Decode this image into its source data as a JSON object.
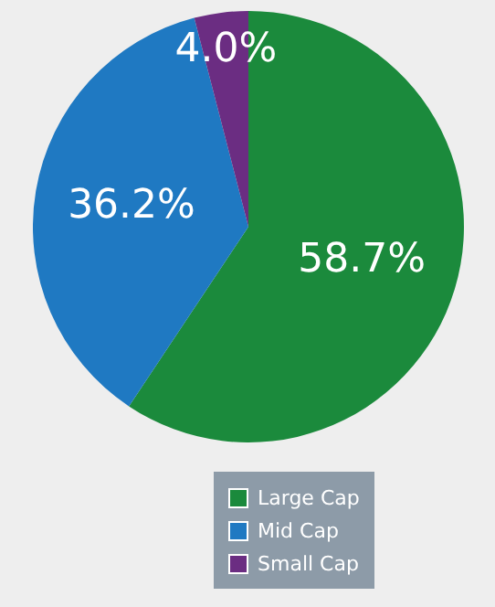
{
  "chart_data": {
    "type": "pie",
    "categories": [
      "Large Cap",
      "Mid Cap",
      "Small Cap"
    ],
    "values": [
      58.7,
      36.2,
      4.0
    ],
    "colors": [
      "#1b8a3c",
      "#1f79c2",
      "#6b2d82"
    ],
    "value_labels": [
      "58.7%",
      "36.2%",
      "4.0%"
    ],
    "legend": "bottom"
  }
}
